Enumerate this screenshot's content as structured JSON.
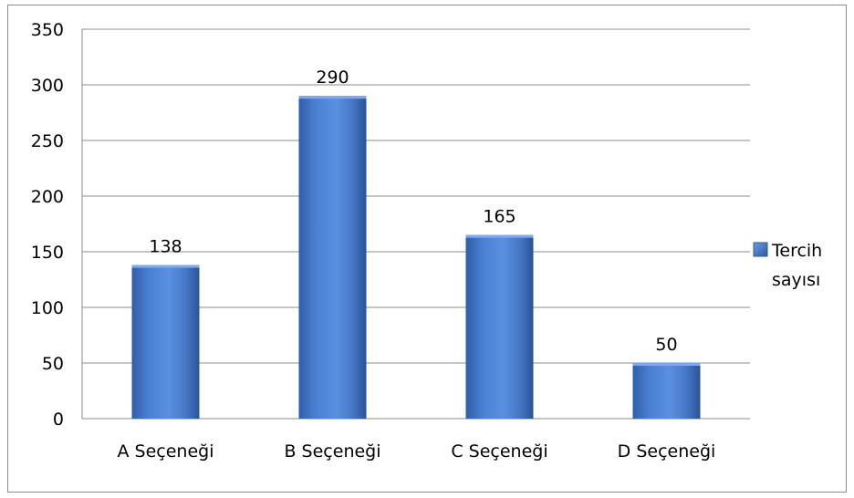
{
  "chart_data": {
    "type": "bar",
    "categories": [
      "A Seçeneği",
      "B Seçeneği",
      "C Seçeneği",
      "D Seçeneği"
    ],
    "series": [
      {
        "name": "Tercih sayısı",
        "values": [
          138,
          290,
          165,
          50
        ]
      }
    ],
    "legend": {
      "lines": [
        "Tercih",
        "sayısı"
      ],
      "position": "right"
    },
    "ylim": [
      0,
      350
    ],
    "yticks": [
      0,
      50,
      100,
      150,
      200,
      250,
      300,
      350
    ],
    "grid": true,
    "title": "",
    "xlabel": "",
    "ylabel": "",
    "colors": {
      "bar": "#4a7fd0",
      "bar_dark": "#2c5aa0",
      "grid": "#8c8c8c"
    }
  }
}
